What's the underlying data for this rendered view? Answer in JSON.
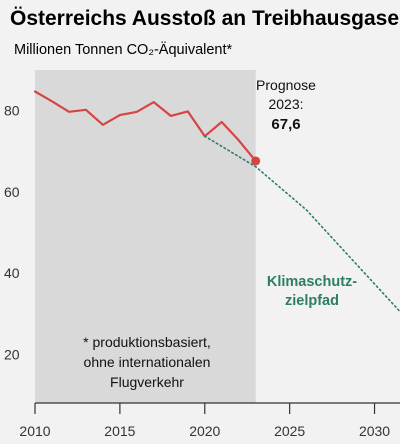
{
  "chart_data": {
    "type": "line",
    "title": "Österreichs Ausstoß an Treibhausgasen",
    "ylabel": "Millionen Tonnen CO₂-Äquivalent*",
    "xlim": [
      2010,
      2031.5
    ],
    "ylim": [
      8,
      90
    ],
    "x_ticks": [
      2010,
      2015,
      2020,
      2025,
      2030
    ],
    "x_tick_labels": [
      "2010",
      "2015",
      "2020",
      "2025",
      "2030"
    ],
    "y_ticks": [
      20,
      40,
      60,
      80
    ],
    "y_tick_labels": [
      "20",
      "40",
      "60",
      "80"
    ],
    "series": [
      {
        "name": "",
        "style": "solid",
        "color": "#d64545",
        "x": [
          2010,
          2011,
          2012,
          2013,
          2014,
          2015,
          2016,
          2017,
          2018,
          2019,
          2020,
          2021,
          2022,
          2023
        ],
        "y": [
          84.7,
          82.3,
          79.7,
          80.2,
          76.5,
          78.9,
          79.7,
          82.1,
          78.7,
          79.8,
          73.7,
          77.2,
          72.7,
          67.6
        ]
      },
      {
        "name": "Klimaschutzzielpfad",
        "style": "dotted",
        "color": "#2e7d65",
        "x": [
          2020,
          2023,
          2026,
          2031.5
        ],
        "y": [
          73.7,
          66.2,
          55.5,
          30.5
        ]
      }
    ],
    "highlight": {
      "x": 2023,
      "y": 67.6
    },
    "shaded_region": {
      "x_start": 2010,
      "x_end": 2023,
      "color": "#d9d9d9"
    },
    "annotations": {
      "forecast_line1": "Prognose",
      "forecast_line2": "2023:",
      "forecast_value": "67,6",
      "path_label_line1": "Klimaschutz-",
      "path_label_line2": "zielpfad",
      "note_line1": "* produktionsbasiert,",
      "note_line2": "ohne internationalen",
      "note_line3": "Flugverkehr"
    },
    "grid": false
  }
}
